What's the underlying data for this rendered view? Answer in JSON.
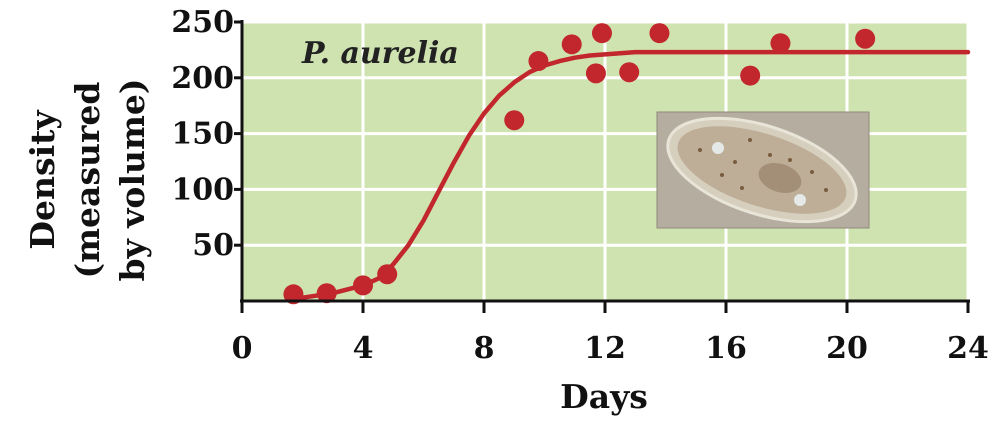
{
  "chart_data": {
    "type": "scatter",
    "title": "",
    "annotation": "P. aurelia",
    "xlabel": "Days",
    "ylabel_lines": [
      "Density",
      "(measured",
      "by volume)"
    ],
    "xlim": [
      0,
      24
    ],
    "ylim": [
      0,
      250
    ],
    "x_ticks": [
      0,
      4,
      8,
      12,
      16,
      20,
      24
    ],
    "y_ticks": [
      50,
      100,
      150,
      200,
      250
    ],
    "grid": true,
    "colors": {
      "plot_background": "#cfe3b0",
      "gridline": "#ffffff",
      "series": "#c1272d",
      "axis": "#111111"
    },
    "series": [
      {
        "kind": "points",
        "x": [
          1.7,
          2.8,
          4.0,
          4.8,
          9.0,
          9.8,
          10.9,
          11.7,
          11.9,
          12.8,
          13.8,
          16.8,
          17.8,
          20.6
        ],
        "y": [
          6,
          7,
          14,
          24,
          162,
          215,
          230,
          204,
          240,
          205,
          240,
          202,
          231,
          235
        ]
      },
      {
        "kind": "fitted-curve",
        "x": [
          1.7,
          2,
          3,
          4,
          4.5,
          5,
          5.5,
          6,
          6.5,
          7,
          7.5,
          8,
          8.5,
          9,
          9.5,
          10,
          10.5,
          11,
          11.5,
          12,
          12.5,
          13,
          14,
          15,
          16,
          18,
          20,
          22,
          24
        ],
        "y": [
          2,
          3,
          7,
          14,
          20,
          33,
          50,
          72,
          98,
          124,
          148,
          168,
          184,
          196,
          205,
          211,
          215,
          218,
          220,
          221,
          222,
          223,
          223,
          223,
          223,
          223,
          223,
          223,
          223
        ]
      }
    ],
    "inset_image": "paramecium-photo"
  }
}
